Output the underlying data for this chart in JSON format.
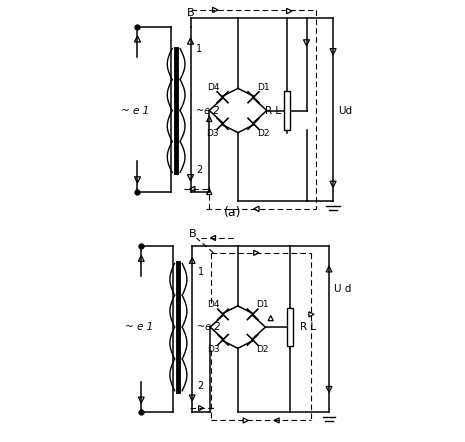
{
  "fig_width": 4.65,
  "fig_height": 4.42,
  "dpi": 100,
  "bg_color": "#ffffff",
  "text_e1": "~ e 1",
  "text_e2": "~ e 2",
  "label_a": "(a)",
  "text_RL": "R L",
  "text_Ud_top": "Ud",
  "text_Ud_bot": "U d",
  "text_B": "B"
}
